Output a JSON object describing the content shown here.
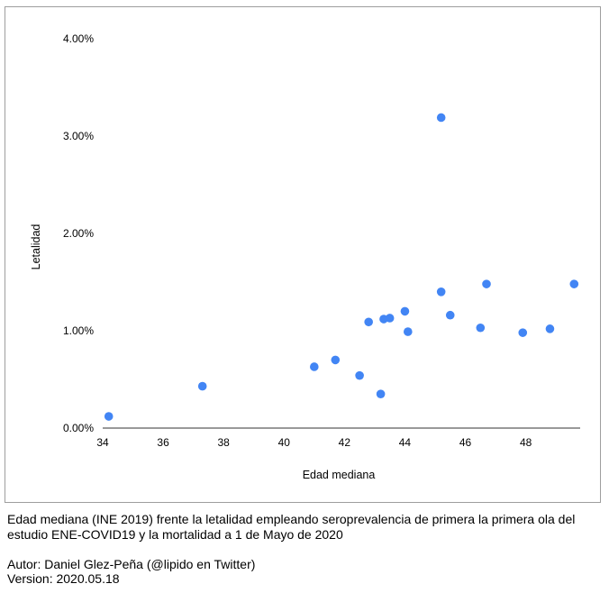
{
  "chart_data": {
    "type": "scatter",
    "title": "",
    "xlabel": "Edad mediana",
    "ylabel": "Letalidad",
    "xlim": [
      34,
      49.8
    ],
    "ylim": [
      0,
      4
    ],
    "x_ticks": [
      34,
      36,
      38,
      40,
      42,
      44,
      46,
      48
    ],
    "x_tick_labels": [
      "34",
      "36",
      "38",
      "40",
      "42",
      "44",
      "46",
      "48"
    ],
    "y_ticks": [
      0,
      1,
      2,
      3,
      4
    ],
    "y_tick_labels": [
      "0.00%",
      "1.00%",
      "2.00%",
      "3.00%",
      "4.00%"
    ],
    "y_unit": "percent",
    "grid": false,
    "legend": "none",
    "marker_color": "#4285f4",
    "axis_color": "#333333",
    "series": [
      {
        "name": "Letalidad",
        "points": [
          {
            "x": 34.2,
            "y": 0.12
          },
          {
            "x": 37.3,
            "y": 0.43
          },
          {
            "x": 41.0,
            "y": 0.63
          },
          {
            "x": 41.7,
            "y": 0.7
          },
          {
            "x": 42.5,
            "y": 0.54
          },
          {
            "x": 42.8,
            "y": 1.09
          },
          {
            "x": 43.2,
            "y": 0.35
          },
          {
            "x": 43.3,
            "y": 1.12
          },
          {
            "x": 43.5,
            "y": 1.13
          },
          {
            "x": 44.0,
            "y": 1.2
          },
          {
            "x": 44.1,
            "y": 0.99
          },
          {
            "x": 45.2,
            "y": 3.19
          },
          {
            "x": 45.2,
            "y": 1.4
          },
          {
            "x": 45.5,
            "y": 1.16
          },
          {
            "x": 46.5,
            "y": 1.03
          },
          {
            "x": 46.7,
            "y": 1.48
          },
          {
            "x": 47.9,
            "y": 0.98
          },
          {
            "x": 48.8,
            "y": 1.02
          },
          {
            "x": 49.6,
            "y": 1.48
          }
        ]
      }
    ]
  },
  "caption": {
    "line1": "Edad mediana (INE 2019) frente la letalidad empleando seroprevalencia de primera la primera ola del",
    "line2": "estudio ENE-COVID19 y la mortalidad a 1 de Mayo de 2020",
    "author": "Autor: Daniel Glez-Peña (@lipido en Twitter)",
    "version": "Version: 2020.05.18"
  }
}
